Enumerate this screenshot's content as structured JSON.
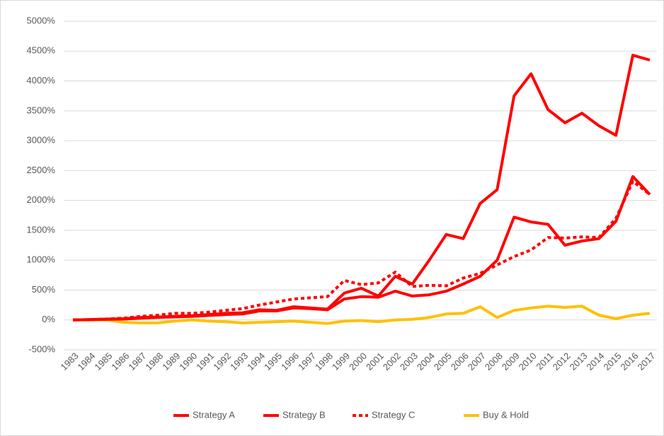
{
  "chart_data": {
    "type": "line",
    "categories": [
      "1983",
      "1984",
      "1985",
      "1986",
      "1987",
      "1988",
      "1989",
      "1990",
      "1991",
      "1992",
      "1993",
      "1994",
      "1995",
      "1996",
      "1997",
      "1998",
      "1999",
      "2000",
      "2001",
      "2002",
      "2003",
      "2004",
      "2005",
      "2006",
      "2007",
      "2008",
      "2009",
      "2010",
      "2011",
      "2012",
      "2013",
      "2014",
      "2015",
      "2016",
      "2017"
    ],
    "series": [
      {
        "name": "Strategy A",
        "color": "#ff0000",
        "line_style": "solid",
        "values": [
          0,
          5,
          15,
          20,
          40,
          50,
          60,
          70,
          90,
          110,
          120,
          170,
          160,
          220,
          200,
          180,
          450,
          530,
          400,
          730,
          600,
          1000,
          1430,
          1360,
          1950,
          2180,
          3750,
          4120,
          3520,
          3300,
          3460,
          3250,
          3090,
          4430,
          4350
        ]
      },
      {
        "name": "Strategy B",
        "color": "#ff0000",
        "line_style": "solid",
        "values": [
          0,
          5,
          10,
          15,
          30,
          40,
          50,
          60,
          75,
          90,
          100,
          150,
          150,
          200,
          190,
          170,
          350,
          390,
          380,
          480,
          400,
          420,
          480,
          600,
          730,
          1000,
          1720,
          1640,
          1600,
          1250,
          1320,
          1360,
          1650,
          2400,
          2100
        ]
      },
      {
        "name": "Strategy C",
        "color": "#ff0000",
        "line_style": "dotted",
        "values": [
          0,
          5,
          15,
          30,
          60,
          80,
          110,
          110,
          130,
          160,
          190,
          250,
          300,
          350,
          370,
          390,
          660,
          590,
          620,
          800,
          560,
          580,
          570,
          700,
          780,
          920,
          1060,
          1170,
          1380,
          1370,
          1390,
          1380,
          1700,
          2320,
          2100
        ]
      },
      {
        "name": "Buy & Hold",
        "color": "#ffc000",
        "line_style": "solid",
        "values": [
          0,
          0,
          0,
          -40,
          -50,
          -50,
          -20,
          0,
          -20,
          -30,
          -50,
          -40,
          -30,
          -20,
          -40,
          -60,
          -20,
          -10,
          -30,
          0,
          10,
          40,
          100,
          110,
          220,
          40,
          160,
          200,
          230,
          210,
          230,
          80,
          20,
          80,
          110
        ]
      }
    ],
    "ylim": [
      -500,
      5000
    ],
    "yticks": [
      {
        "value": -500,
        "label": "-500%"
      },
      {
        "value": 0,
        "label": "0%"
      },
      {
        "value": 500,
        "label": "500%"
      },
      {
        "value": 1000,
        "label": "1000%"
      },
      {
        "value": 1500,
        "label": "1500%"
      },
      {
        "value": 2000,
        "label": "2000%"
      },
      {
        "value": 2500,
        "label": "2500%"
      },
      {
        "value": 3000,
        "label": "3000%"
      },
      {
        "value": 3500,
        "label": "3500%"
      },
      {
        "value": 4000,
        "label": "4000%"
      },
      {
        "value": 4500,
        "label": "4500%"
      },
      {
        "value": 5000,
        "label": "5000%"
      }
    ],
    "grid": true,
    "legend": "bottom"
  }
}
